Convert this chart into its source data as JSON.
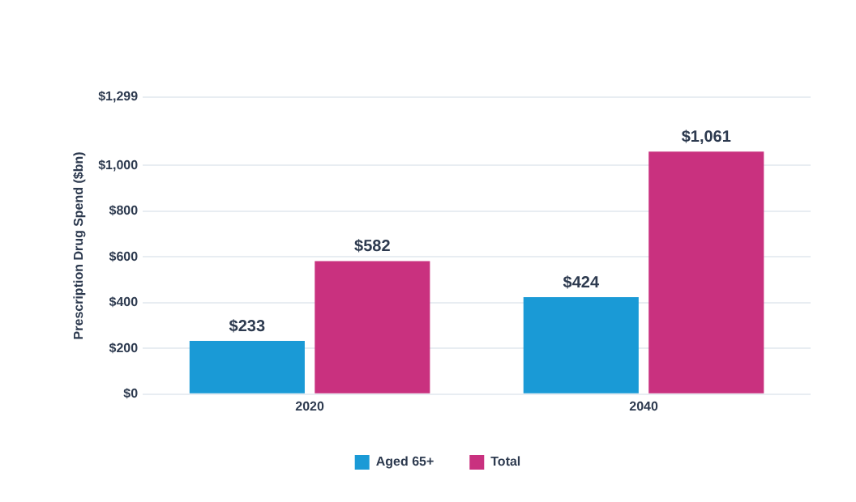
{
  "chart_data": {
    "type": "bar",
    "ylabel": "Prescription Drug Spend ($bn)",
    "categories": [
      "2020",
      "2040"
    ],
    "series": [
      {
        "name": "Aged 65+",
        "color": "#1a9ad6",
        "values": [
          233,
          424
        ],
        "value_labels": [
          "$233",
          "$424"
        ]
      },
      {
        "name": "Total",
        "color": "#c9317f",
        "values": [
          582,
          1061
        ],
        "value_labels": [
          "$582",
          "$1,061"
        ]
      }
    ],
    "ylim": [
      0,
      1299
    ],
    "yticks": [
      {
        "value": 0,
        "label": "$0"
      },
      {
        "value": 200,
        "label": "$200"
      },
      {
        "value": 400,
        "label": "$400"
      },
      {
        "value": 600,
        "label": "$600"
      },
      {
        "value": 800,
        "label": "$800"
      },
      {
        "value": 1000,
        "label": "$1,000"
      },
      {
        "value": 1299,
        "label": "$1,299"
      }
    ],
    "grid": "y",
    "legend": "bottom"
  }
}
